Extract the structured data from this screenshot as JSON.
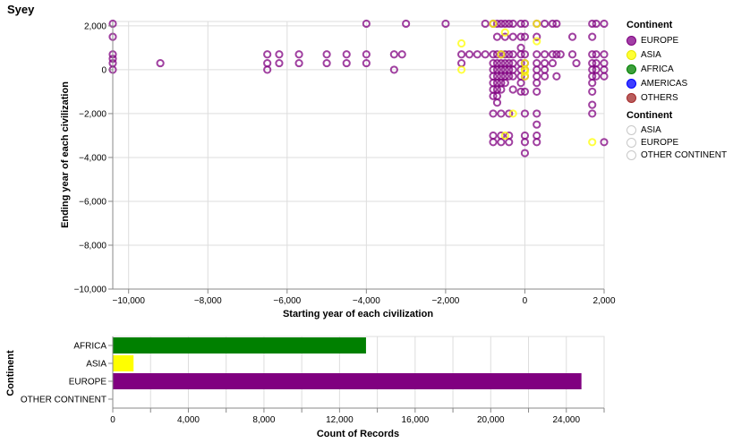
{
  "title": "Syey",
  "legend1": {
    "title": "Continent",
    "items": [
      {
        "label": "EUROPE",
        "color": "#800080"
      },
      {
        "label": "ASIA",
        "color": "#ffff00"
      },
      {
        "label": "AFRICA",
        "color": "#008000"
      },
      {
        "label": "AMERICAS",
        "color": "#0000ff"
      },
      {
        "label": "OTHERS",
        "color": "#a52a2a"
      }
    ]
  },
  "legend2": {
    "title": "Continent",
    "items": [
      {
        "label": "ASIA"
      },
      {
        "label": "EUROPE"
      },
      {
        "label": "OTHER CONTINENT"
      }
    ]
  },
  "chart_data": [
    {
      "type": "scatter",
      "xlabel": "Starting year of each civilization",
      "ylabel": "Ending year of each civilization",
      "xlim": [
        -10400,
        2000
      ],
      "ylim": [
        -10000,
        2200
      ],
      "xticks": [
        -10000,
        -8000,
        -6000,
        -4000,
        -2000,
        0,
        2000
      ],
      "xtick_labels": [
        "−10,000",
        "−8,000",
        "−6,000",
        "−4,000",
        "−2,000",
        "0",
        "2,000"
      ],
      "yticks": [
        -10000,
        -8000,
        -6000,
        -4000,
        -2000,
        0,
        2000
      ],
      "ytick_labels": [
        "−10,000",
        "−8,000",
        "−6,000",
        "−4,000",
        "−2,000",
        "0",
        "2,000"
      ],
      "grid": true,
      "point_style": "open-circle",
      "series": [
        {
          "name": "EUROPE",
          "color": "#800080",
          "points": [
            [
              -10400,
              2100
            ],
            [
              -10400,
              1500
            ],
            [
              -10400,
              700
            ],
            [
              -10400,
              500
            ],
            [
              -10400,
              300
            ],
            [
              -10400,
              0
            ],
            [
              -9200,
              300
            ],
            [
              -6500,
              700
            ],
            [
              -6500,
              300
            ],
            [
              -6500,
              0
            ],
            [
              -6200,
              700
            ],
            [
              -6200,
              300
            ],
            [
              -5700,
              700
            ],
            [
              -5700,
              300
            ],
            [
              -5000,
              700
            ],
            [
              -5000,
              300
            ],
            [
              -4500,
              700
            ],
            [
              -4500,
              300
            ],
            [
              -4000,
              2100
            ],
            [
              -4000,
              700
            ],
            [
              -4000,
              300
            ],
            [
              -3300,
              700
            ],
            [
              -3300,
              0
            ],
            [
              -3100,
              700
            ],
            [
              -3000,
              2100
            ],
            [
              -2000,
              2100
            ],
            [
              -1600,
              700
            ],
            [
              -1600,
              300
            ],
            [
              -1400,
              700
            ],
            [
              -1200,
              700
            ],
            [
              -1000,
              700
            ],
            [
              -1000,
              2100
            ],
            [
              -800,
              2100
            ],
            [
              -800,
              700
            ],
            [
              -800,
              300
            ],
            [
              -800,
              0
            ],
            [
              -800,
              -300
            ],
            [
              -800,
              -600
            ],
            [
              -800,
              -900
            ],
            [
              -800,
              -1200
            ],
            [
              -800,
              -2000
            ],
            [
              -800,
              -3000
            ],
            [
              -800,
              -3300
            ],
            [
              -700,
              2100
            ],
            [
              -700,
              1500
            ],
            [
              -700,
              700
            ],
            [
              -700,
              300
            ],
            [
              -700,
              0
            ],
            [
              -700,
              -300
            ],
            [
              -700,
              -600
            ],
            [
              -700,
              -900
            ],
            [
              -700,
              -1200
            ],
            [
              -700,
              -1500
            ],
            [
              -600,
              2100
            ],
            [
              -600,
              700
            ],
            [
              -600,
              300
            ],
            [
              -600,
              0
            ],
            [
              -600,
              -300
            ],
            [
              -600,
              -600
            ],
            [
              -600,
              -900
            ],
            [
              -600,
              -2000
            ],
            [
              -600,
              -3000
            ],
            [
              -600,
              -3300
            ],
            [
              -500,
              2100
            ],
            [
              -500,
              1500
            ],
            [
              -500,
              700
            ],
            [
              -500,
              300
            ],
            [
              -500,
              0
            ],
            [
              -500,
              -300
            ],
            [
              -500,
              -600
            ],
            [
              -400,
              2100
            ],
            [
              -400,
              700
            ],
            [
              -400,
              300
            ],
            [
              -400,
              0
            ],
            [
              -400,
              -300
            ],
            [
              -400,
              -2000
            ],
            [
              -400,
              -3000
            ],
            [
              -400,
              -3300
            ],
            [
              -300,
              2100
            ],
            [
              -300,
              1500
            ],
            [
              -300,
              700
            ],
            [
              -300,
              300
            ],
            [
              -300,
              0
            ],
            [
              -300,
              -300
            ],
            [
              -300,
              -900
            ],
            [
              -100,
              2100
            ],
            [
              -100,
              1500
            ],
            [
              -100,
              1000
            ],
            [
              -100,
              700
            ],
            [
              -100,
              300
            ],
            [
              -100,
              0
            ],
            [
              -100,
              -300
            ],
            [
              -100,
              -600
            ],
            [
              -100,
              -1000
            ],
            [
              0,
              2100
            ],
            [
              0,
              1500
            ],
            [
              0,
              700
            ],
            [
              0,
              300
            ],
            [
              0,
              0
            ],
            [
              0,
              -300
            ],
            [
              0,
              -1000
            ],
            [
              0,
              -2000
            ],
            [
              0,
              -3000
            ],
            [
              0,
              -3300
            ],
            [
              0,
              -3800
            ],
            [
              300,
              2100
            ],
            [
              300,
              1500
            ],
            [
              300,
              700
            ],
            [
              300,
              300
            ],
            [
              300,
              0
            ],
            [
              300,
              -300
            ],
            [
              300,
              -600
            ],
            [
              300,
              -1000
            ],
            [
              300,
              -2000
            ],
            [
              300,
              -2500
            ],
            [
              300,
              -3000
            ],
            [
              300,
              -3300
            ],
            [
              500,
              2100
            ],
            [
              500,
              700
            ],
            [
              500,
              300
            ],
            [
              500,
              0
            ],
            [
              500,
              -300
            ],
            [
              700,
              2100
            ],
            [
              700,
              700
            ],
            [
              700,
              300
            ],
            [
              800,
              2100
            ],
            [
              800,
              700
            ],
            [
              800,
              -300
            ],
            [
              900,
              700
            ],
            [
              1200,
              1500
            ],
            [
              1200,
              700
            ],
            [
              1300,
              300
            ],
            [
              1700,
              2100
            ],
            [
              1700,
              1500
            ],
            [
              1700,
              700
            ],
            [
              1700,
              300
            ],
            [
              1700,
              0
            ],
            [
              1700,
              -300
            ],
            [
              1700,
              -600
            ],
            [
              1700,
              -1000
            ],
            [
              1700,
              -1600
            ],
            [
              1700,
              -2000
            ],
            [
              1800,
              2100
            ],
            [
              1800,
              700
            ],
            [
              1800,
              300
            ],
            [
              1800,
              0
            ],
            [
              1800,
              -300
            ],
            [
              2000,
              2100
            ],
            [
              2000,
              700
            ],
            [
              2000,
              300
            ],
            [
              2000,
              0
            ],
            [
              2000,
              -300
            ],
            [
              2000,
              -3300
            ]
          ]
        },
        {
          "name": "ASIA",
          "color": "#ffff00",
          "points": [
            [
              -1600,
              1200
            ],
            [
              -1600,
              0
            ],
            [
              -600,
              700
            ],
            [
              -500,
              1700
            ],
            [
              -300,
              -2000
            ],
            [
              -500,
              -3000
            ],
            [
              0,
              0
            ],
            [
              0,
              -300
            ],
            [
              0,
              300
            ],
            [
              0,
              -100
            ],
            [
              300,
              2100
            ],
            [
              300,
              1300
            ],
            [
              1700,
              -3300
            ],
            [
              -800,
              2100
            ]
          ]
        }
      ]
    },
    {
      "type": "bar",
      "orientation": "horizontal",
      "ylabel": "Continent",
      "xlabel": "Count of Records",
      "categories": [
        "AFRICA",
        "ASIA",
        "EUROPE",
        "OTHER CONTINENT"
      ],
      "values": [
        13400,
        1100,
        24800,
        0
      ],
      "colors": [
        "#008000",
        "#ffff00",
        "#800080",
        "#a52a2a"
      ],
      "xlim": [
        0,
        26000
      ],
      "xticks": [
        0,
        4000,
        8000,
        12000,
        16000,
        20000,
        24000
      ],
      "xtick_labels": [
        "0",
        "4,000",
        "8,000",
        "12,000",
        "16,000",
        "20,000",
        "24,000"
      ],
      "grid": true
    }
  ]
}
